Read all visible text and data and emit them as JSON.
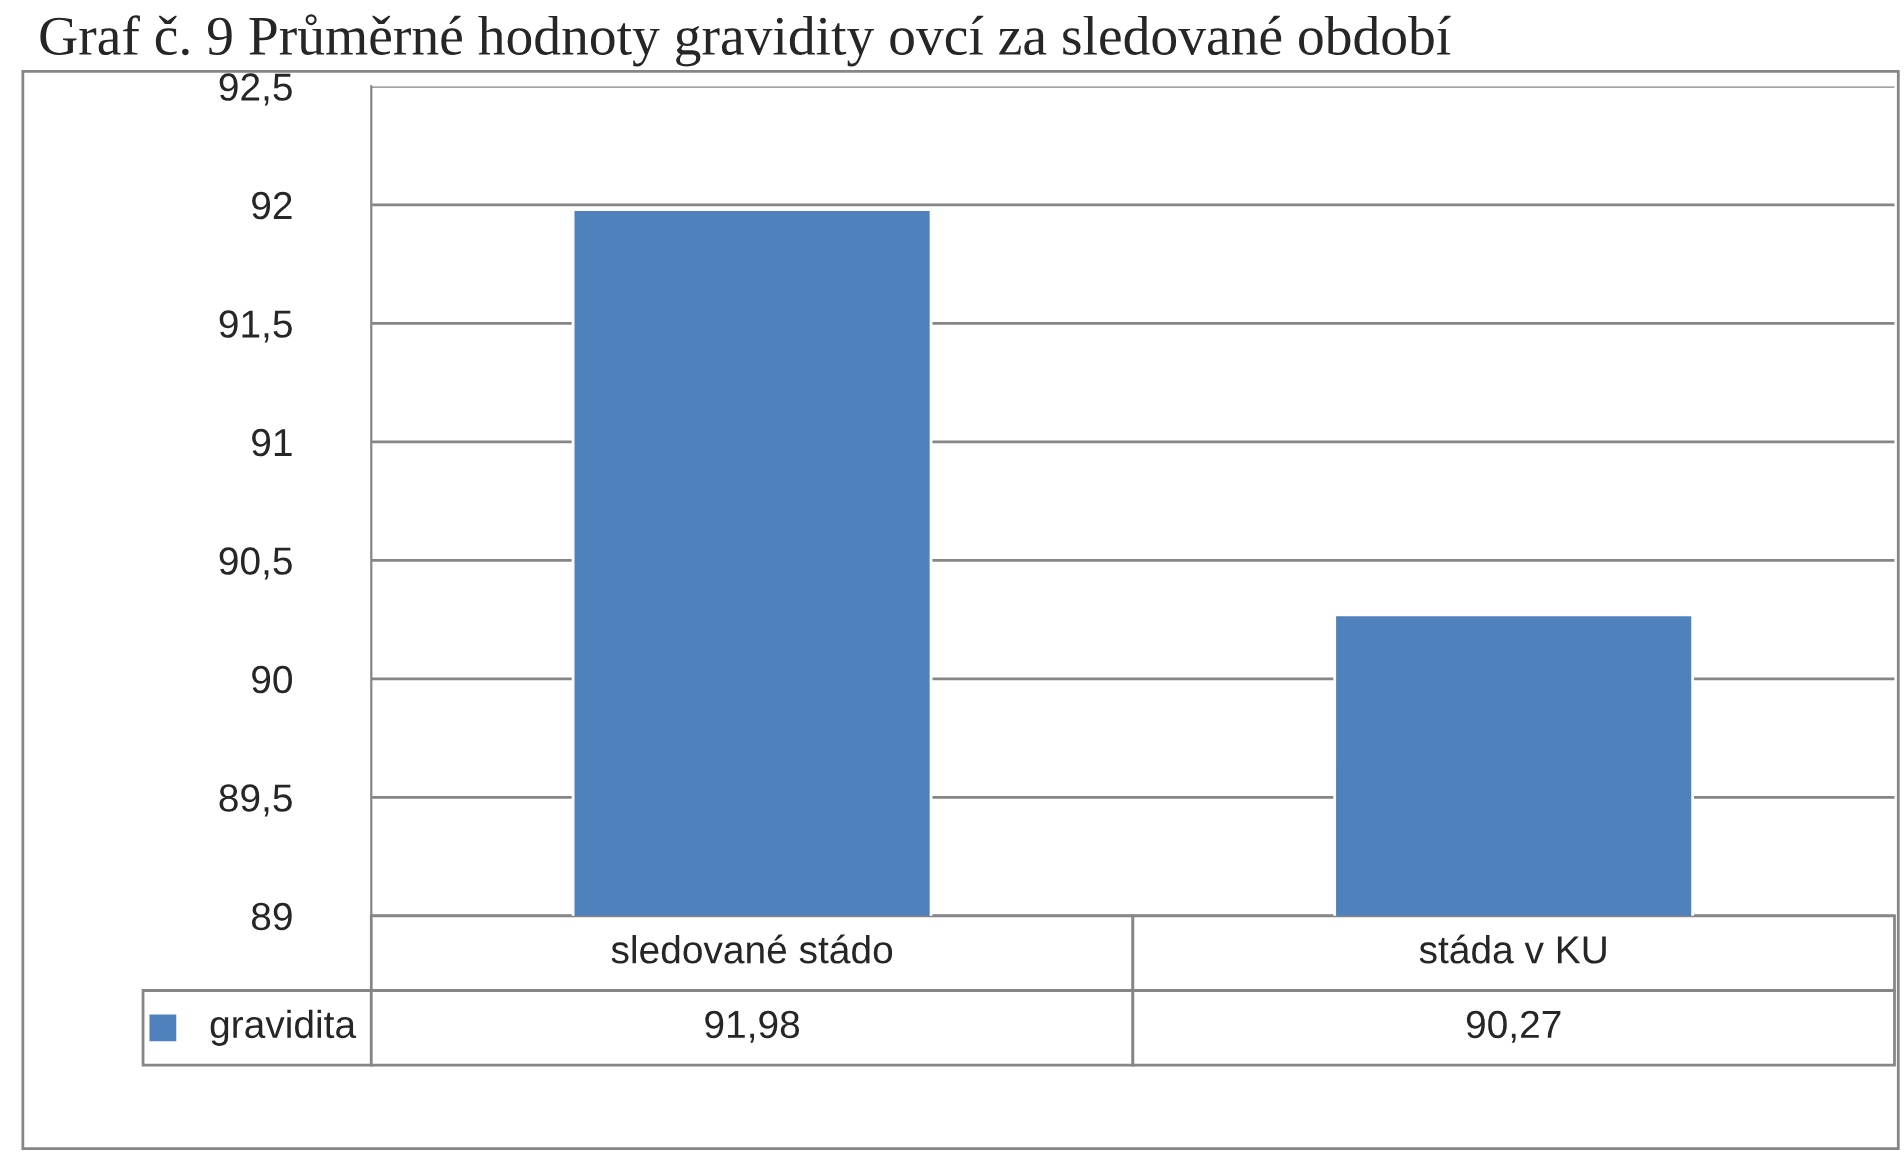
{
  "chart_data": {
    "type": "bar",
    "title": "Graf č. 9 Průměrné hodnoty gravidity ovcí za sledované období",
    "categories": [
      "sledované stádo",
      "stáda v KU"
    ],
    "series": [
      {
        "name": "gravidita",
        "color": "#4f81bd",
        "values": [
          91.98,
          90.27
        ],
        "value_labels": [
          "91,98",
          "90,27"
        ]
      }
    ],
    "ylim": [
      89,
      92.5
    ],
    "yticks": [
      {
        "value": 89,
        "label": "89"
      },
      {
        "value": 89.5,
        "label": "89,5"
      },
      {
        "value": 90,
        "label": "90"
      },
      {
        "value": 90.5,
        "label": "90,5"
      },
      {
        "value": 91,
        "label": "91"
      },
      {
        "value": 91.5,
        "label": "91,5"
      },
      {
        "value": 92,
        "label": "92"
      },
      {
        "value": 92.5,
        "label": "92,5"
      }
    ],
    "grid": "y",
    "legend": "bottom left"
  }
}
